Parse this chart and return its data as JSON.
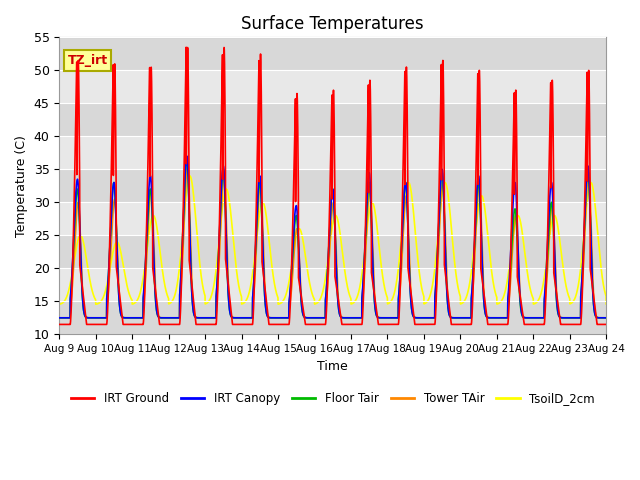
{
  "title": "Surface Temperatures",
  "xlabel": "Time",
  "ylabel": "Temperature (C)",
  "ylim": [
    10,
    55
  ],
  "xlim": [
    0,
    15
  ],
  "x_tick_labels": [
    "Aug 9",
    "Aug 10",
    "Aug 11",
    "Aug 12",
    "Aug 13",
    "Aug 14",
    "Aug 15",
    "Aug 16",
    "Aug 17",
    "Aug 18",
    "Aug 19",
    "Aug 20",
    "Aug 21",
    "Aug 22",
    "Aug 23",
    "Aug 24"
  ],
  "annotation_text": "TZ_irt",
  "annotation_color": "#cc0000",
  "annotation_bg": "#ffff99",
  "annotation_border": "#aaaa00",
  "series_colors": {
    "IRT Ground": "#ff0000",
    "IRT Canopy": "#0000ff",
    "Floor Tair": "#00bb00",
    "Tower TAir": "#ff8800",
    "TsoilD_2cm": "#ffff00"
  },
  "lw": 1.2,
  "bg_color": "#e8e8e8",
  "fig_bg": "#ffffff",
  "grid_color": "#ffffff",
  "title_fontsize": 12,
  "irt_g_peaks": [
    51.5,
    51.0,
    50.5,
    53.5,
    53.5,
    52.5,
    46.5,
    47.0,
    48.5,
    50.5,
    51.5,
    50.0,
    47.0,
    48.5,
    50.0
  ],
  "irt_c_peaks": [
    33.5,
    33.0,
    34.0,
    37.0,
    35.5,
    34.0,
    29.5,
    32.0,
    34.5,
    33.0,
    35.0,
    34.0,
    33.0,
    33.0,
    35.5
  ],
  "floor_peaks": [
    32.0,
    33.0,
    32.0,
    36.5,
    35.0,
    33.0,
    28.0,
    32.0,
    33.0,
    33.0,
    34.5,
    33.0,
    29.0,
    30.0,
    35.0
  ],
  "tower_peaks": [
    30.0,
    30.5,
    32.0,
    35.5,
    34.0,
    33.0,
    26.0,
    30.0,
    32.0,
    31.0,
    33.0,
    32.5,
    28.0,
    29.5,
    34.5
  ],
  "tsoil_peaks": [
    25.0,
    24.0,
    28.0,
    34.0,
    32.0,
    30.0,
    26.0,
    28.0,
    30.0,
    33.0,
    33.0,
    31.0,
    28.0,
    28.0,
    33.0
  ],
  "irt_g_night": 11.5,
  "other_night": 12.5,
  "tsoil_night": 14.5,
  "n_days": 15,
  "pts_per_day": 288
}
